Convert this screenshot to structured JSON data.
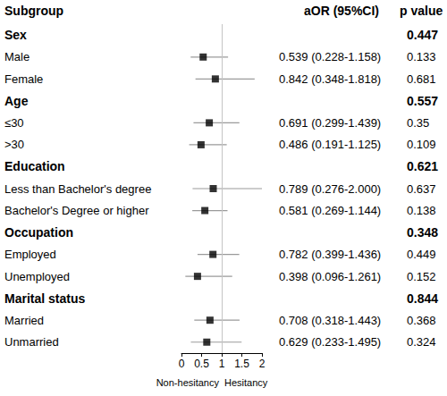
{
  "chart_data": {
    "type": "forest",
    "headers": [
      "Subgroup",
      "aOR (95%CI)",
      "p value"
    ],
    "x_labels": [
      "Non-hesitancy",
      "Hesitancy"
    ],
    "xlim": [
      0,
      2
    ],
    "xticks": [
      0,
      0.5,
      1,
      1.5,
      2
    ],
    "reference_line": 1,
    "color": "#000000",
    "groups": [
      {
        "label": "Sex",
        "p_value": 0.447,
        "subgroups": [
          {
            "label": "Male",
            "aor": 0.539,
            "ci_lower": 0.228,
            "ci_upper": 1.158,
            "aor_label": "0.539 (0.228-1.158)",
            "p_value": 0.133
          },
          {
            "label": "Female",
            "aor": 0.842,
            "ci_lower": 0.348,
            "ci_upper": 1.818,
            "aor_label": "0.842 (0.348-1.818)",
            "p_value": 0.681
          }
        ]
      },
      {
        "label": "Age",
        "p_value": 0.557,
        "subgroups": [
          {
            "label": "≤30",
            "aor": 0.691,
            "ci_lower": 0.299,
            "ci_upper": 1.439,
            "aor_label": "0.691 (0.299-1.439)",
            "p_value": 0.35
          },
          {
            "label": ">30",
            "aor": 0.486,
            "ci_lower": 0.191,
            "ci_upper": 1.125,
            "aor_label": "0.486 (0.191-1.125)",
            "p_value": 0.109
          }
        ]
      },
      {
        "label": "Education",
        "p_value": 0.621,
        "subgroups": [
          {
            "label": "Less than Bachelor's degree",
            "aor": 0.789,
            "ci_lower": 0.276,
            "ci_upper": 2.0,
            "aor_label": "0.789 (0.276-2.000)",
            "p_value": 0.637
          },
          {
            "label": "Bachelor's Degree or higher",
            "aor": 0.581,
            "ci_lower": 0.269,
            "ci_upper": 1.144,
            "aor_label": "0.581 (0.269-1.144)",
            "p_value": 0.138
          }
        ]
      },
      {
        "label": "Occupation",
        "p_value": 0.348,
        "subgroups": [
          {
            "label": "Employed",
            "aor": 0.782,
            "ci_lower": 0.399,
            "ci_upper": 1.436,
            "aor_label": "0.782 (0.399-1.436)",
            "p_value": 0.449
          },
          {
            "label": "Unemployed",
            "aor": 0.398,
            "ci_lower": 0.096,
            "ci_upper": 1.261,
            "aor_label": "0.398 (0.096-1.261)",
            "p_value": 0.152
          }
        ]
      },
      {
        "label": "Marital status",
        "p_value": 0.844,
        "subgroups": [
          {
            "label": "Married",
            "aor": 0.708,
            "ci_lower": 0.318,
            "ci_upper": 1.443,
            "aor_label": "0.708 (0.318-1.443)",
            "p_value": 0.368
          },
          {
            "label": "Unmarried",
            "aor": 0.629,
            "ci_lower": 0.233,
            "ci_upper": 1.495,
            "aor_label": "0.629 (0.233-1.495)",
            "p_value": 0.324
          }
        ]
      }
    ]
  }
}
